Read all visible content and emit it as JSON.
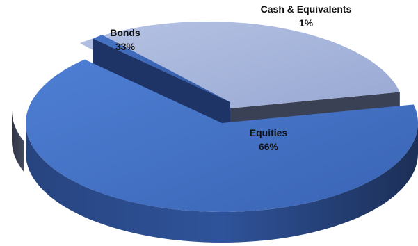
{
  "chart_data": {
    "type": "pie",
    "style": "3d-exploded",
    "title": "",
    "slices": [
      {
        "name": "Equities",
        "value": 66,
        "label": "66%",
        "color": "#4472C4"
      },
      {
        "name": "Cash & Equivalents",
        "value": 1,
        "label": "1%",
        "color": "#3D66B8"
      },
      {
        "name": "Bonds",
        "value": 33,
        "label": "33%",
        "color": "#A9B8DE"
      }
    ],
    "legend": "none"
  }
}
